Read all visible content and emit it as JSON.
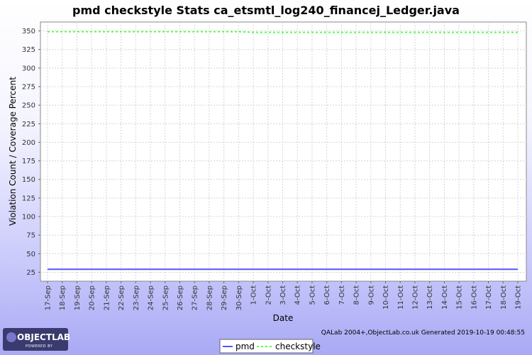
{
  "chart_data": {
    "type": "line",
    "title": "pmd checkstyle  Stats ca_etsmtl_log240_financej_Ledger.java",
    "xlabel": "Date",
    "ylabel": "Violation Count / Coverage Percent",
    "ylim": [
      13,
      362
    ],
    "yticks": [
      25,
      50,
      75,
      100,
      125,
      150,
      175,
      200,
      225,
      250,
      275,
      300,
      325,
      350
    ],
    "grid": true,
    "legend_position": "bottom-center",
    "categories": [
      "17-Sep",
      "18-Sep",
      "19-Sep",
      "20-Sep",
      "21-Sep",
      "22-Sep",
      "23-Sep",
      "24-Sep",
      "25-Sep",
      "26-Sep",
      "27-Sep",
      "28-Sep",
      "29-Sep",
      "30-Sep",
      "1-Oct",
      "2-Oct",
      "3-Oct",
      "4-Oct",
      "5-Oct",
      "6-Oct",
      "7-Oct",
      "8-Oct",
      "9-Oct",
      "10-Oct",
      "11-Oct",
      "12-Oct",
      "13-Oct",
      "14-Oct",
      "15-Oct",
      "16-Oct",
      "17-Oct",
      "18-Oct",
      "19-Oct"
    ],
    "series": [
      {
        "name": "pmd",
        "color": "#5555ff",
        "style": "solid",
        "values": [
          29,
          29,
          29,
          29,
          29,
          29,
          29,
          29,
          29,
          29,
          29,
          29,
          29,
          29,
          29,
          29,
          29,
          29,
          29,
          29,
          29,
          29,
          29,
          29,
          29,
          29,
          29,
          29,
          29,
          29,
          29,
          29,
          29
        ]
      },
      {
        "name": "checkstyle",
        "color": "#55ff55",
        "style": "dashed",
        "values": [
          349,
          349,
          349,
          349,
          349,
          349,
          349,
          349,
          349,
          349,
          349,
          349,
          349,
          349,
          348,
          348,
          348,
          348,
          348,
          348,
          348,
          348,
          348,
          348,
          348,
          348,
          348,
          348,
          348,
          348,
          348,
          348,
          348
        ]
      }
    ]
  },
  "footer": {
    "credit": "QALab 2004+,ObjectLab.co.uk  Generated 2019-10-19 00:48:55"
  },
  "logo": {
    "name": "OBJECTLAB",
    "tagline": "POWERED BY"
  }
}
